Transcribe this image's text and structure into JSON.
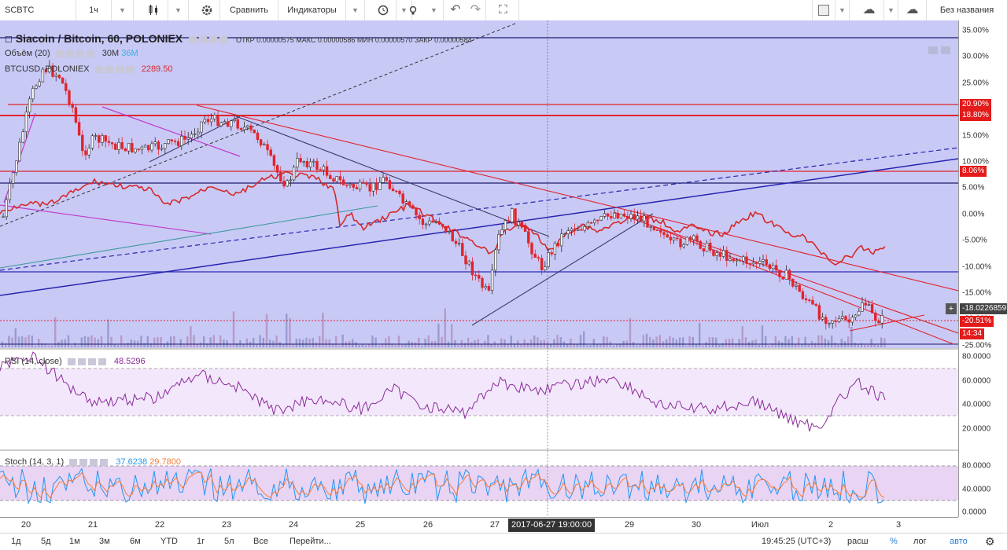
{
  "toolbar": {
    "symbol": "SCBTC",
    "interval": "1ч",
    "compare_label": "Сравнить",
    "indicators_label": "Индикаторы",
    "layout_name": "Без названия"
  },
  "main_chart": {
    "title": "Siacoin / Bitcoin, 60, POLONIEX",
    "ohlc": "ОТКР 0.00000575 МАКС 0.00000586 МИН 0.00000570 ЗАКР 0.00000584",
    "volume_legend": "Объём (20)",
    "volume_value": "30M",
    "volume_ma": "36M",
    "compare_legend": "BTCUSD, POLONIEX",
    "compare_value": "2289.50",
    "price_ticks": [
      "35.00%",
      "30.00%",
      "25.00%",
      "20.00%",
      "15.00%",
      "10.00%",
      "5.00%",
      "0.00%",
      "-5.00%",
      "-10.00%",
      "-15.00%",
      "-20.00%",
      "-25.00%"
    ],
    "tags": {
      "level_1": "20.90%",
      "level_2": "18.80%",
      "level_3": "8.06%",
      "crosshair_value": "-18.0226859",
      "last_price": "-20.51%",
      "countdown": "14:34"
    },
    "colors": {
      "background": "#c9c9f6",
      "up": "#2b2b2b",
      "down": "#e0242b",
      "compare_line": "#d42a2a"
    }
  },
  "rsi": {
    "legend": "RSI (14, close)",
    "value": "48.5296",
    "ticks": [
      "80.0000",
      "60.0000",
      "40.0000",
      "20.0000"
    ]
  },
  "stoch": {
    "legend": "Stoch (14, 3, 1)",
    "k_value": "37.6238",
    "d_value": "29.7800",
    "ticks": [
      "80.0000",
      "40.0000",
      "0.0000"
    ]
  },
  "time_axis": {
    "labels": [
      "20",
      "21",
      "22",
      "23",
      "24",
      "25",
      "26",
      "27",
      "29",
      "30",
      "Июл",
      "2",
      "3"
    ],
    "crosshair": "2017-06-27 19:00:00"
  },
  "bottom_bar": {
    "ranges": [
      "1д",
      "5д",
      "1м",
      "3м",
      "6м",
      "YTD",
      "1г",
      "5л",
      "Все"
    ],
    "goto_label": "Перейти...",
    "clock": "19:45:25 (UTC+3)",
    "modes": [
      "расш",
      "%",
      "лог",
      "авто"
    ]
  }
}
